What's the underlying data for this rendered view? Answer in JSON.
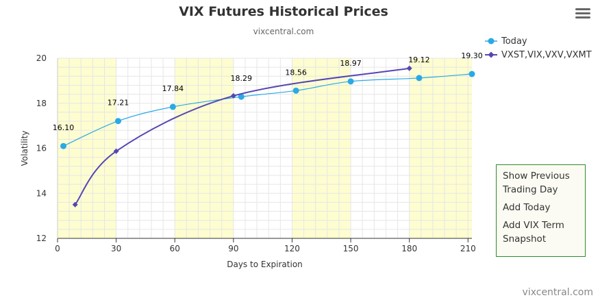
{
  "header": {
    "title": "VIX Futures Historical Prices",
    "subtitle": "vixcentral.com"
  },
  "options_panel": {
    "show_previous": "Show Previous Trading Day",
    "add_today": "Add Today",
    "add_vix_term": "Add VIX Term Snapshot"
  },
  "credit": "vixcentral.com",
  "colors": {
    "today": "#2aa9e6",
    "vix_term": "#5546b3",
    "band": "#fdfdd0",
    "grid": "#e6e6e6"
  },
  "chart_data": {
    "type": "line",
    "xlabel": "Days to Expiration",
    "ylabel": "Volatility",
    "xlim": [
      0,
      212
    ],
    "ylim": [
      12,
      20
    ],
    "x_ticks": [
      0,
      30,
      60,
      90,
      120,
      150,
      180,
      210
    ],
    "y_ticks": [
      12,
      14,
      16,
      18,
      20
    ],
    "shaded_bands": [
      [
        0,
        30
      ],
      [
        60,
        90
      ],
      [
        120,
        150
      ],
      [
        180,
        212
      ]
    ],
    "legend_position": "top-right",
    "grid": true,
    "series": [
      {
        "name": "Today",
        "color": "#2aa9e6",
        "marker": "circle",
        "x": [
          3,
          31,
          59,
          94,
          122,
          150,
          185,
          212
        ],
        "y": [
          16.1,
          17.21,
          17.84,
          18.29,
          18.56,
          18.97,
          19.12,
          19.3
        ],
        "labels": [
          "16.10",
          "17.21",
          "17.84",
          "18.29",
          "18.56",
          "18.97",
          "19.12",
          "19.30"
        ]
      },
      {
        "name": "VXST,VIX,VXV,VXMT",
        "color": "#5546b3",
        "marker": "diamond",
        "x": [
          9,
          30,
          90,
          180
        ],
        "y": [
          13.5,
          15.87,
          18.33,
          19.55
        ]
      }
    ]
  }
}
